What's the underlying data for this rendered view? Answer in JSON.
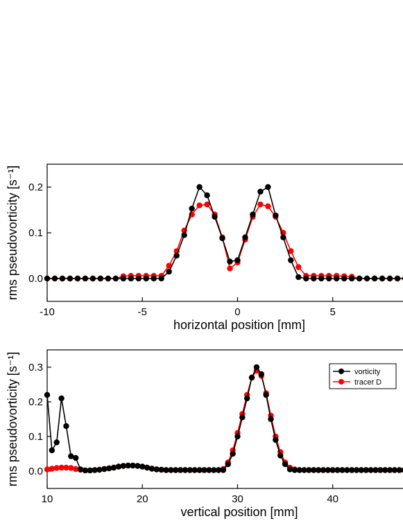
{
  "chart_data": [
    {
      "type": "line",
      "xlabel": "horizontal position [mm]",
      "ylabel": "rms pseudovorticity [s⁻¹]",
      "x": [
        -10,
        -9.6,
        -9.2,
        -8.8,
        -8.4,
        -8,
        -7.6,
        -7.2,
        -6.8,
        -6.4,
        -6,
        -5.6,
        -5.2,
        -4.8,
        -4.4,
        -4,
        -3.6,
        -3.2,
        -2.8,
        -2.4,
        -2,
        -1.6,
        -1.2,
        -0.8,
        -0.4,
        0,
        0.4,
        0.8,
        1.2,
        1.6,
        2,
        2.4,
        2.8,
        3.2,
        3.6,
        4,
        4.4,
        4.8,
        5.2,
        5.6,
        6,
        6.4,
        6.8,
        7.2,
        7.6,
        8,
        8.4,
        8.8
      ],
      "series": [
        {
          "name": "vorticity",
          "color": "#000000",
          "values": [
            0,
            0,
            0,
            0,
            0,
            0,
            0,
            0,
            0,
            0,
            0,
            0,
            0,
            0,
            0,
            0,
            0.015,
            0.05,
            0.095,
            0.153,
            0.2,
            0.182,
            0.135,
            0.088,
            0.037,
            0.04,
            0.09,
            0.14,
            0.19,
            0.2,
            0.138,
            0.09,
            0.04,
            0.003,
            0,
            0,
            0,
            0,
            0,
            0,
            0,
            0,
            0,
            0,
            0,
            0,
            0,
            0
          ]
        },
        {
          "name": "tracer D",
          "color": "#ff0000",
          "values": [
            0,
            0,
            0,
            0,
            0,
            0,
            0,
            0,
            0,
            0,
            0.005,
            0.006,
            0.006,
            0.006,
            0.006,
            0.006,
            0.028,
            0.06,
            0.105,
            0.14,
            0.16,
            0.162,
            0.14,
            0.09,
            0.022,
            0.035,
            0.085,
            0.135,
            0.162,
            0.158,
            0.135,
            0.1,
            0.06,
            0.025,
            0.006,
            0.006,
            0.006,
            0.006,
            0.006,
            0.005,
            0.004,
            0,
            0,
            0,
            0,
            0,
            0,
            0
          ]
        }
      ],
      "xlim": [
        -10,
        8.8
      ],
      "xticks": [
        -10,
        -5,
        0,
        5
      ],
      "ylim": [
        -0.05,
        0.25
      ],
      "yticks": [
        {
          "value": 0,
          "label": "0.0"
        },
        0.1,
        0.2
      ]
    },
    {
      "type": "line",
      "xlabel": "vertical position [mm]",
      "ylabel": "rms pseudovorticity [s⁻¹]",
      "legend": "upper right",
      "x": [
        10,
        10.5,
        11,
        11.5,
        12,
        12.5,
        13,
        13.5,
        14,
        14.5,
        15,
        15.5,
        16,
        16.5,
        17,
        17.5,
        18,
        18.5,
        19,
        19.5,
        20,
        20.5,
        21,
        21.5,
        22,
        22.5,
        23,
        23.5,
        24,
        24.5,
        25,
        25.5,
        26,
        26.5,
        27,
        27.5,
        28,
        28.5,
        29,
        29.5,
        30,
        30.5,
        31,
        31.5,
        32,
        32.5,
        33,
        33.5,
        34,
        34.5,
        35,
        35.5,
        36,
        36.5,
        37,
        37.5,
        38,
        38.5,
        39,
        39.5,
        40,
        40.5,
        41,
        41.5,
        42,
        42.5,
        43,
        43.5,
        44,
        44.5,
        45,
        45.5,
        46,
        46.5,
        47,
        47.5
      ],
      "series": [
        {
          "name": "vorticity",
          "color": "#000000",
          "values": [
            0.22,
            0.06,
            0.083,
            0.21,
            0.13,
            0.043,
            0.038,
            0.005,
            0.002,
            0.002,
            0.003,
            0.004,
            0.006,
            0.008,
            0.01,
            0.013,
            0.015,
            0.016,
            0.016,
            0.015,
            0.013,
            0.01,
            0.007,
            0.005,
            0.004,
            0.003,
            0.003,
            0.003,
            0.003,
            0.003,
            0.003,
            0.003,
            0.003,
            0.003,
            0.003,
            0.003,
            0.003,
            0.003,
            0.02,
            0.05,
            0.1,
            0.155,
            0.21,
            0.27,
            0.3,
            0.28,
            0.22,
            0.15,
            0.09,
            0.045,
            0.02,
            0.005,
            0.003,
            0.003,
            0.003,
            0.003,
            0.003,
            0.003,
            0.003,
            0.003,
            0.003,
            0.003,
            0.003,
            0.003,
            0.003,
            0.003,
            0.003,
            0.003,
            0.003,
            0.003,
            0.003,
            0.003,
            0.003,
            0.003,
            0.003,
            0.003
          ]
        },
        {
          "name": "tracer D",
          "color": "#ff0000",
          "values": [
            0.005,
            0.007,
            0.009,
            0.01,
            0.01,
            0.009,
            0.006,
            0.004,
            0.002,
            0.002,
            0.003,
            0.004,
            0.006,
            0.008,
            0.01,
            0.013,
            0.015,
            0.016,
            0.016,
            0.015,
            0.013,
            0.01,
            0.007,
            0.005,
            0.004,
            0.003,
            0.003,
            0.003,
            0.003,
            0.003,
            0.003,
            0.003,
            0.003,
            0.003,
            0.003,
            0.003,
            0.003,
            0.006,
            0.025,
            0.06,
            0.11,
            0.165,
            0.22,
            0.27,
            0.29,
            0.275,
            0.225,
            0.16,
            0.1,
            0.055,
            0.025,
            0.01,
            0.005,
            0.003,
            0.003,
            0.003,
            0.003,
            0.003,
            0.003,
            0.003,
            0.003,
            0.003,
            0.003,
            0.003,
            0.003,
            0.003,
            0.003,
            0.003,
            0.003,
            0.003,
            0.003,
            0.003,
            0.003,
            0.003,
            0.003,
            0.003
          ]
        }
      ],
      "xlim": [
        10,
        47.6
      ],
      "xticks": [
        10,
        20,
        30,
        40
      ],
      "ylim": [
        -0.05,
        0.35
      ],
      "yticks": [
        {
          "value": 0,
          "label": "0.0"
        },
        0.1,
        0.2,
        0.3
      ]
    }
  ]
}
